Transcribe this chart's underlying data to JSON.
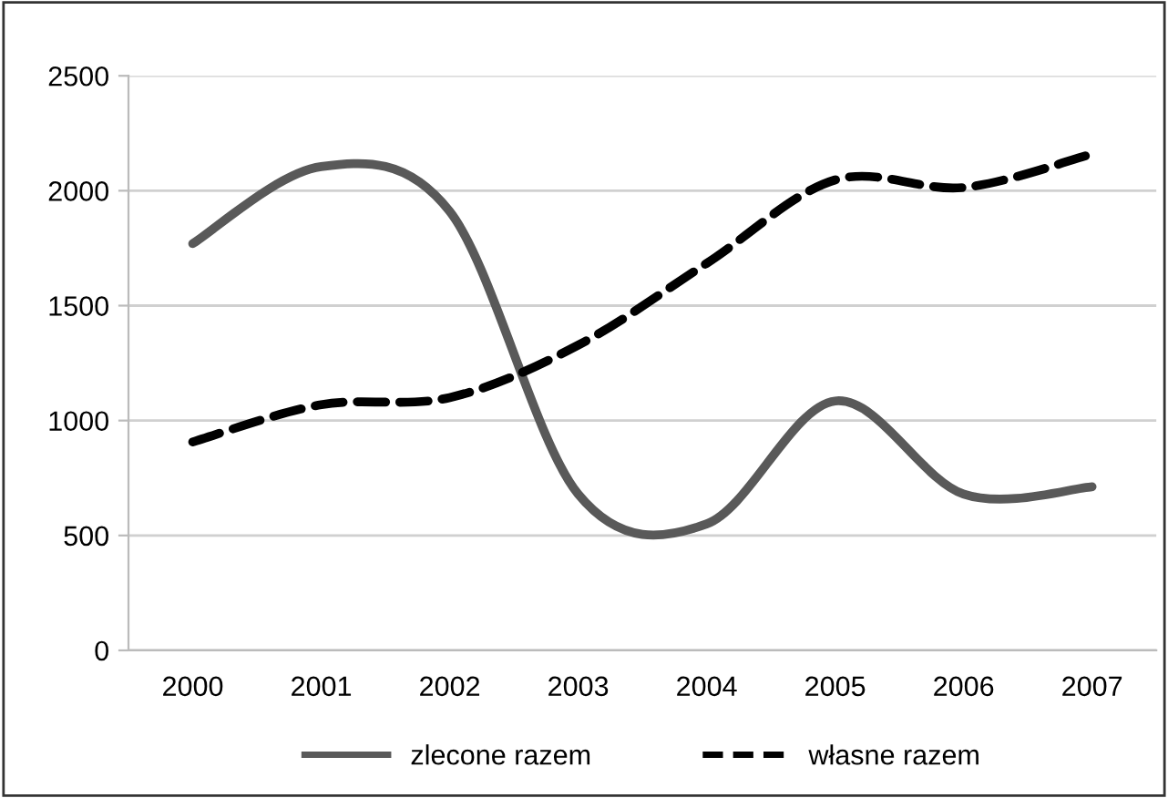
{
  "chart_data": {
    "type": "line",
    "categories": [
      "2000",
      "2001",
      "2002",
      "2003",
      "2004",
      "2005",
      "2006",
      "2007"
    ],
    "series": [
      {
        "name": "zlecone razem",
        "color": "#595959",
        "line_style": "solid",
        "values": [
          1770,
          2105,
          1910,
          680,
          550,
          1085,
          680,
          712
        ]
      },
      {
        "name": "własne razem",
        "color": "#000000",
        "line_style": "dashed",
        "values": [
          907,
          1069,
          1100,
          1328,
          1684,
          2047,
          2014,
          2160
        ]
      }
    ],
    "ylim": [
      0,
      2500
    ],
    "yticks": [
      0,
      500,
      1000,
      1500,
      2000,
      2500
    ],
    "grid": "y",
    "legend": "bottom",
    "marker": "none"
  }
}
